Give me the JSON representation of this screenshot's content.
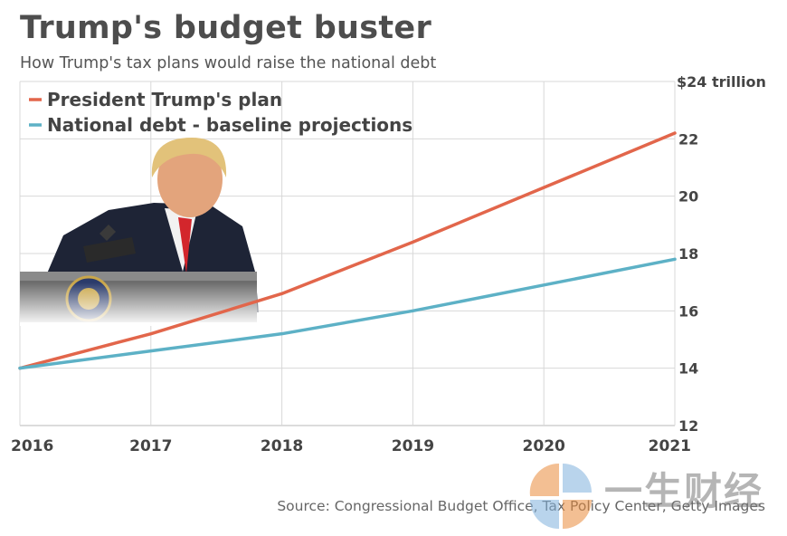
{
  "header": {
    "title": "Trump's budget buster",
    "subtitle": "How Trump's tax plans would raise the national debt"
  },
  "source": "Source: Congressional Budget Office, Tax Policy Center, Getty Images",
  "watermark": {
    "text": "一生财经"
  },
  "colors": {
    "trump_plan": "#e2664b",
    "baseline": "#5db1c6",
    "grid": "#d8d8d8",
    "text": "#444444"
  },
  "chart_data": {
    "type": "line",
    "x": [
      2016,
      2017,
      2018,
      2019,
      2020,
      2021
    ],
    "x_tick_labels": [
      "2016",
      "2017",
      "2018",
      "2019",
      "2020",
      "2021"
    ],
    "y_tick_labels": [
      "$24 trillion",
      "22",
      "20",
      "18",
      "16",
      "14",
      "12"
    ],
    "y_ticks": [
      24,
      22,
      20,
      18,
      16,
      14,
      12
    ],
    "ylim": [
      12,
      24
    ],
    "xlim": [
      2016,
      2021
    ],
    "y_axis_side": "right",
    "grid": true,
    "legend_placement": "top-left",
    "series": [
      {
        "name": "President Trump's plan",
        "values": [
          14.0,
          15.2,
          16.6,
          18.4,
          20.3,
          22.2
        ]
      },
      {
        "name": "National debt - baseline projections",
        "values": [
          14.0,
          14.6,
          15.2,
          16.0,
          16.9,
          17.8
        ]
      }
    ]
  }
}
